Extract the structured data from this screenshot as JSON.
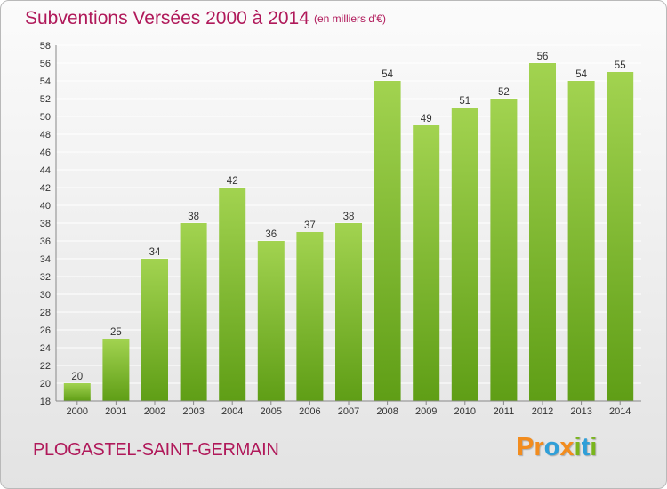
{
  "header": {
    "title": "Subventions Versées 2000 à 2014",
    "subtitle": "(en milliers d'€)"
  },
  "footer": {
    "commune": "PLOGASTEL-SAINT-GERMAIN",
    "logo_letters": [
      "P",
      "r",
      "o",
      "x",
      "i",
      "t",
      "i"
    ],
    "logo_colors": [
      "#f28c1e",
      "#f28c1e",
      "#2f9fd8",
      "#f28c1e",
      "#7ab51d",
      "#2f9fd8",
      "#7ab51d"
    ]
  },
  "colors": {
    "title": "#b0195a",
    "bar_top": "#a2d350",
    "bar_bottom": "#5f9e16",
    "grid": "#ffffff"
  },
  "chart_data": {
    "type": "bar",
    "title": "Subventions Versées 2000 à 2014",
    "subtitle": "(en milliers d'€)",
    "categories": [
      "2000",
      "2001",
      "2002",
      "2003",
      "2004",
      "2005",
      "2006",
      "2007",
      "2008",
      "2009",
      "2010",
      "2011",
      "2012",
      "2013",
      "2014"
    ],
    "values": [
      20,
      25,
      34,
      38,
      42,
      36,
      37,
      38,
      54,
      49,
      51,
      52,
      56,
      54,
      55
    ],
    "ylim": [
      18,
      58
    ],
    "yticks": [
      18,
      20,
      22,
      24,
      26,
      28,
      30,
      32,
      34,
      36,
      38,
      40,
      42,
      44,
      46,
      48,
      50,
      52,
      54,
      56,
      58
    ],
    "grid": true,
    "data_labels": true
  }
}
